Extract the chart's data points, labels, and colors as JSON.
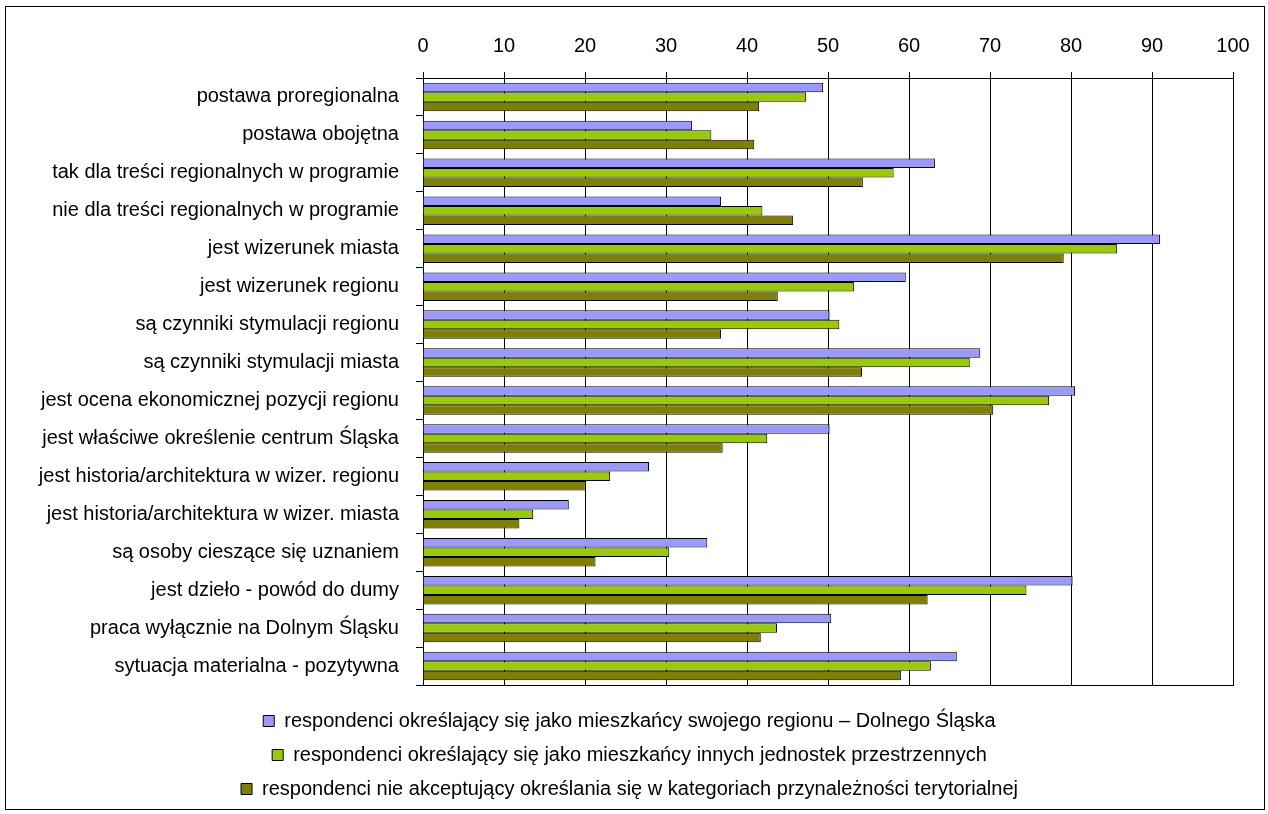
{
  "chart_data": {
    "type": "bar",
    "orientation": "horizontal",
    "categories": [
      "postawa proregionalna",
      "postawa obojętna",
      "tak dla treści regionalnych w programie",
      "nie dla treści regionalnych w programie",
      "jest wizerunek miasta",
      "jest wizerunek regionu",
      "są czynniki stymulacji regionu",
      "są czynniki stymulacji miasta",
      "jest ocena ekonomicznej pozycji regionu",
      "jest właściwe określenie centrum Śląska",
      "jest historia/architektura w wizer. regionu",
      "jest historia/architektura w wizer. miasta",
      "są osoby cieszące się uznaniem",
      "jest dzieło - powód do dumy",
      "praca wyłącznie na Dolnym Śląsku",
      "sytuacja materialna - pozytywna"
    ],
    "series": [
      {
        "name": "respondenci określający się jako mieszkańcy swojego regionu – Dolnego Śląska",
        "color": "#9999ff",
        "values": [
          49.4,
          33.2,
          63.2,
          36.8,
          91.0,
          59.6,
          50.2,
          68.8,
          80.5,
          50.2,
          27.9,
          18.0,
          35.1,
          80.2,
          50.4,
          65.9
        ]
      },
      {
        "name": "respondenci określający się jako mieszkańcy innych jednostek przestrzennych",
        "color": "#99cc00",
        "values": [
          47.3,
          35.6,
          58.1,
          41.9,
          85.7,
          53.2,
          51.4,
          67.5,
          77.3,
          42.5,
          23.1,
          13.6,
          30.4,
          74.5,
          43.7,
          62.7
        ]
      },
      {
        "name": "respondenci nie akceptujący określania się w kategoriach przynależności terytorialnej",
        "color": "#808000",
        "values": [
          41.5,
          40.9,
          54.3,
          45.7,
          79.1,
          43.8,
          36.8,
          54.2,
          70.4,
          37.0,
          20.1,
          11.9,
          21.3,
          62.3,
          41.7,
          59.0
        ]
      }
    ],
    "xlim": [
      0,
      100
    ],
    "xticks": [
      0,
      10,
      20,
      30,
      40,
      50,
      60,
      70,
      80,
      90,
      100
    ],
    "grid": "x",
    "legend": "bottom"
  }
}
